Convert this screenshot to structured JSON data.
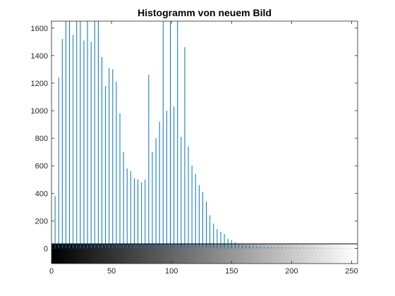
{
  "chart_data": {
    "type": "bar",
    "title": "Histogramm von neuem Bild",
    "xlabel": "",
    "ylabel": "",
    "xlim": [
      0,
      255
    ],
    "ylim": [
      -110,
      1650
    ],
    "x_ticks": [
      0,
      50,
      100,
      150,
      200,
      250
    ],
    "y_ticks": [
      0,
      200,
      400,
      600,
      800,
      1000,
      1200,
      1400,
      1600
    ],
    "grid": false,
    "colorbar": {
      "type": "grayscale",
      "range": [
        0,
        255
      ]
    },
    "colors": {
      "bars": "#0072BD",
      "axes": "#262626"
    },
    "x": [
      0,
      3,
      6,
      9,
      12,
      15,
      18,
      21,
      24,
      27,
      30,
      33,
      36,
      39,
      42,
      45,
      48,
      51,
      54,
      57,
      60,
      63,
      66,
      69,
      72,
      75,
      78,
      81,
      84,
      87,
      90,
      93,
      96,
      99,
      102,
      105,
      108,
      111,
      114,
      117,
      120,
      123,
      126,
      129,
      132,
      135,
      138,
      141,
      144,
      147,
      150,
      153,
      156,
      159,
      162,
      165,
      168,
      171,
      174,
      177,
      180,
      183,
      186,
      189,
      192,
      195,
      198,
      201,
      204,
      207,
      210,
      213,
      216,
      219,
      222,
      225,
      228,
      231,
      234,
      237,
      240,
      243,
      246,
      249,
      252,
      255
    ],
    "values": [
      30,
      380,
      1240,
      1520,
      1700,
      1700,
      1550,
      1700,
      1700,
      1510,
      1700,
      1500,
      1700,
      1700,
      1390,
      1180,
      1310,
      1300,
      1210,
      980,
      700,
      580,
      560,
      510,
      500,
      480,
      500,
      1260,
      700,
      800,
      920,
      1700,
      1000,
      1700,
      1030,
      1700,
      810,
      1460,
      740,
      600,
      540,
      460,
      410,
      340,
      240,
      180,
      140,
      120,
      105,
      70,
      60,
      45,
      30,
      25,
      20,
      18,
      15,
      14,
      12,
      10,
      10,
      9,
      8,
      8,
      7,
      7,
      6,
      6,
      5,
      5,
      5,
      4,
      4,
      4,
      4,
      3,
      3,
      3,
      3,
      2,
      2,
      2,
      2,
      2,
      2,
      2
    ]
  }
}
